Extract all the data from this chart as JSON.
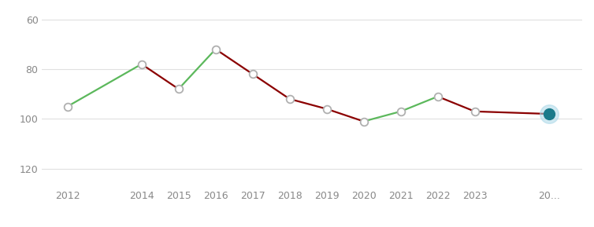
{
  "years": [
    2012,
    2014,
    2015,
    2016,
    2017,
    2018,
    2019,
    2020,
    2021,
    2022,
    2023,
    2025
  ],
  "ranks": [
    95,
    78,
    88,
    72,
    82,
    92,
    96,
    101,
    97,
    91,
    97,
    98
  ],
  "yticks": [
    60,
    80,
    100,
    120
  ],
  "ylim": [
    127,
    55
  ],
  "xlim": [
    2011.3,
    2025.9
  ],
  "green_color": "#5cb85c",
  "red_color": "#8B0000",
  "circle_fill": "#ffffff",
  "circle_edge": "#b0b0b0",
  "circle_edge_width": 1.3,
  "circle_size": 7,
  "last_fill": "#1a7a8a",
  "last_glow": "#aad8e8",
  "last_size": 10,
  "last_glow_size": 17,
  "background": "#ffffff",
  "grid_color": "#e0e0e0",
  "tick_label_color": "#888888",
  "tick_fontsize": 9,
  "line_width": 1.6,
  "xtick_labels": [
    "2012",
    "2014",
    "2015",
    "2016",
    "2017",
    "2018",
    "2019",
    "2020",
    "2021",
    "2022",
    "2023",
    "20..."
  ],
  "xtick_positions": [
    2012,
    2014,
    2015,
    2016,
    2017,
    2018,
    2019,
    2020,
    2021,
    2022,
    2023,
    2025
  ]
}
